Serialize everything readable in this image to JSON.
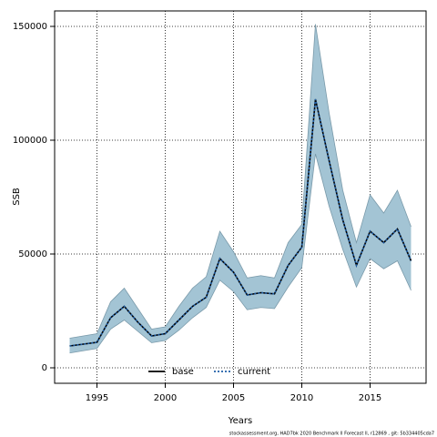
{
  "chart_data": {
    "type": "line",
    "xlabel": "Years",
    "ylabel": "SSB",
    "footnote": "stockassessment.org, HAD7bk 2020 Benchmark ll Forecast ll, r12869 , git: 5b334405cda7",
    "x": [
      1993,
      1994,
      1995,
      1996,
      1997,
      1998,
      1999,
      2000,
      2001,
      2002,
      2003,
      2004,
      2005,
      2006,
      2007,
      2008,
      2009,
      2010,
      2011,
      2012,
      2013,
      2014,
      2015,
      2016,
      2017,
      2018
    ],
    "band": {
      "color": "#a3c4d4",
      "upper": [
        13000,
        14000,
        15000,
        29000,
        35000,
        26000,
        17000,
        18000,
        27000,
        35000,
        40000,
        60000,
        51000,
        39500,
        40500,
        39500,
        55000,
        63000,
        151000,
        112000,
        78000,
        55000,
        76000,
        68000,
        78000,
        62000
      ],
      "lower": [
        6500,
        7500,
        8500,
        17000,
        21000,
        16000,
        11000,
        12000,
        16500,
        22000,
        26500,
        38500,
        33500,
        25500,
        26500,
        26000,
        35500,
        44000,
        94000,
        71000,
        52000,
        35500,
        48000,
        43500,
        47000,
        34000
      ]
    },
    "series": [
      {
        "name": "base",
        "color": "#000000",
        "dash": false,
        "values": [
          9600,
          10400,
          11200,
          22000,
          27000,
          20000,
          14000,
          15000,
          21000,
          27000,
          31000,
          48000,
          42000,
          32000,
          33000,
          32500,
          45000,
          53000,
          118000,
          91000,
          65000,
          45000,
          60000,
          55000,
          61000,
          47000
        ]
      },
      {
        "name": "current",
        "color": "#1f5fa8",
        "dash": true,
        "values": [
          9600,
          10400,
          11200,
          22000,
          27000,
          20000,
          14000,
          15000,
          21000,
          27000,
          31000,
          48000,
          42000,
          32000,
          33000,
          32500,
          45000,
          53000,
          118000,
          91000,
          65000,
          45000,
          60000,
          55000,
          61000,
          47000
        ]
      }
    ],
    "xlim": [
      1991.9,
      2019.1
    ],
    "ylim": [
      -6800,
      156800
    ],
    "xticks": [
      1995,
      2000,
      2005,
      2010,
      2015
    ],
    "yticks": [
      0,
      50000,
      100000,
      150000
    ],
    "grid": true
  }
}
